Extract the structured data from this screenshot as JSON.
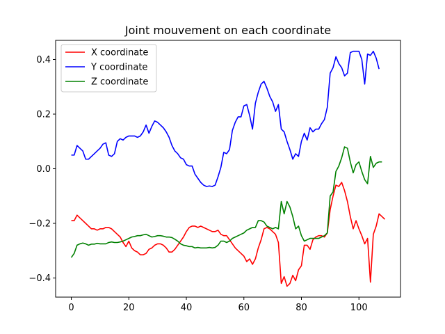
{
  "chart_data": {
    "type": "line",
    "title": "Joint mouvement on each coordinate",
    "xlabel": "",
    "ylabel": "",
    "xlim": [
      -5.45,
      114.45
    ],
    "ylim": [
      -0.47,
      0.47
    ],
    "xticks": [
      0,
      20,
      40,
      60,
      80,
      100
    ],
    "yticks": [
      -0.4,
      -0.2,
      0.0,
      0.2,
      0.4
    ],
    "ytick_labels": [
      "−0.4",
      "−0.2",
      "0.0",
      "0.2",
      "0.4"
    ],
    "grid": false,
    "legend_position": "top-left",
    "series": [
      {
        "name": "X coordinate",
        "color": "#ff0000",
        "values": [
          -0.19,
          -0.19,
          -0.17,
          -0.18,
          -0.19,
          -0.2,
          -0.21,
          -0.22,
          -0.22,
          -0.225,
          -0.22,
          -0.22,
          -0.215,
          -0.215,
          -0.22,
          -0.23,
          -0.24,
          -0.25,
          -0.27,
          -0.285,
          -0.265,
          -0.29,
          -0.3,
          -0.305,
          -0.315,
          -0.315,
          -0.31,
          -0.295,
          -0.29,
          -0.28,
          -0.275,
          -0.275,
          -0.28,
          -0.29,
          -0.305,
          -0.305,
          -0.295,
          -0.28,
          -0.265,
          -0.25,
          -0.23,
          -0.215,
          -0.21,
          -0.21,
          -0.215,
          -0.21,
          -0.215,
          -0.22,
          -0.225,
          -0.23,
          -0.23,
          -0.225,
          -0.24,
          -0.245,
          -0.245,
          -0.26,
          -0.275,
          -0.29,
          -0.3,
          -0.31,
          -0.32,
          -0.34,
          -0.33,
          -0.35,
          -0.33,
          -0.29,
          -0.26,
          -0.22,
          -0.215,
          -0.22,
          -0.23,
          -0.24,
          -0.27,
          -0.42,
          -0.395,
          -0.43,
          -0.42,
          -0.39,
          -0.41,
          -0.37,
          -0.355,
          -0.28,
          -0.28,
          -0.295,
          -0.26,
          -0.25,
          -0.245,
          -0.245,
          -0.25,
          -0.235,
          -0.15,
          -0.1,
          -0.06,
          -0.065,
          -0.05,
          -0.08,
          -0.12,
          -0.175,
          -0.22,
          -0.19,
          -0.22,
          -0.245,
          -0.275,
          -0.255,
          -0.415,
          -0.24,
          -0.21,
          -0.165,
          -0.175,
          -0.185
        ]
      },
      {
        "name": "Y coordinate",
        "color": "#0000ff",
        "values": [
          0.05,
          0.05,
          0.085,
          0.075,
          0.065,
          0.035,
          0.035,
          0.045,
          0.055,
          0.065,
          0.075,
          0.09,
          0.095,
          0.05,
          0.045,
          0.055,
          0.1,
          0.11,
          0.105,
          0.115,
          0.12,
          0.12,
          0.12,
          0.115,
          0.12,
          0.135,
          0.16,
          0.13,
          0.155,
          0.175,
          0.17,
          0.16,
          0.15,
          0.135,
          0.115,
          0.085,
          0.065,
          0.055,
          0.04,
          0.035,
          0.015,
          0.01,
          0.01,
          -0.02,
          -0.035,
          -0.05,
          -0.06,
          -0.065,
          -0.063,
          -0.065,
          -0.06,
          -0.03,
          0.005,
          0.06,
          0.055,
          0.07,
          0.14,
          0.17,
          0.19,
          0.19,
          0.23,
          0.235,
          0.195,
          0.145,
          0.24,
          0.28,
          0.31,
          0.32,
          0.295,
          0.265,
          0.245,
          0.21,
          0.235,
          0.145,
          0.135,
          0.1,
          0.07,
          0.035,
          0.055,
          0.045,
          0.1,
          0.13,
          0.105,
          0.15,
          0.135,
          0.145,
          0.145,
          0.165,
          0.18,
          0.225,
          0.35,
          0.37,
          0.41,
          0.385,
          0.37,
          0.34,
          0.35,
          0.425,
          0.43,
          0.43,
          0.43,
          0.4,
          0.31,
          0.42,
          0.415,
          0.43,
          0.405,
          0.365
        ]
      },
      {
        "name": "Z coordinate",
        "color": "#008000",
        "values": [
          -0.325,
          -0.31,
          -0.28,
          -0.275,
          -0.272,
          -0.275,
          -0.28,
          -0.276,
          -0.276,
          -0.273,
          -0.275,
          -0.275,
          -0.275,
          -0.27,
          -0.268,
          -0.27,
          -0.27,
          -0.268,
          -0.265,
          -0.26,
          -0.255,
          -0.25,
          -0.248,
          -0.245,
          -0.245,
          -0.242,
          -0.24,
          -0.245,
          -0.25,
          -0.248,
          -0.245,
          -0.245,
          -0.247,
          -0.25,
          -0.25,
          -0.252,
          -0.258,
          -0.265,
          -0.275,
          -0.28,
          -0.282,
          -0.285,
          -0.285,
          -0.29,
          -0.288,
          -0.29,
          -0.29,
          -0.29,
          -0.288,
          -0.29,
          -0.288,
          -0.28,
          -0.265,
          -0.265,
          -0.27,
          -0.265,
          -0.255,
          -0.25,
          -0.245,
          -0.24,
          -0.235,
          -0.225,
          -0.22,
          -0.215,
          -0.215,
          -0.19,
          -0.19,
          -0.195,
          -0.21,
          -0.215,
          -0.22,
          -0.215,
          -0.22,
          -0.12,
          -0.165,
          -0.12,
          -0.14,
          -0.175,
          -0.22,
          -0.21,
          -0.245,
          -0.265,
          -0.26,
          -0.255,
          -0.255,
          -0.255,
          -0.255,
          -0.25,
          -0.245,
          -0.235,
          -0.1,
          -0.085,
          -0.01,
          0.01,
          0.04,
          0.08,
          0.075,
          0.025,
          -0.015,
          0.015,
          0.025,
          -0.01,
          -0.04,
          -0.055,
          0.045,
          0.005,
          0.02,
          0.025,
          0.025
        ]
      }
    ]
  }
}
